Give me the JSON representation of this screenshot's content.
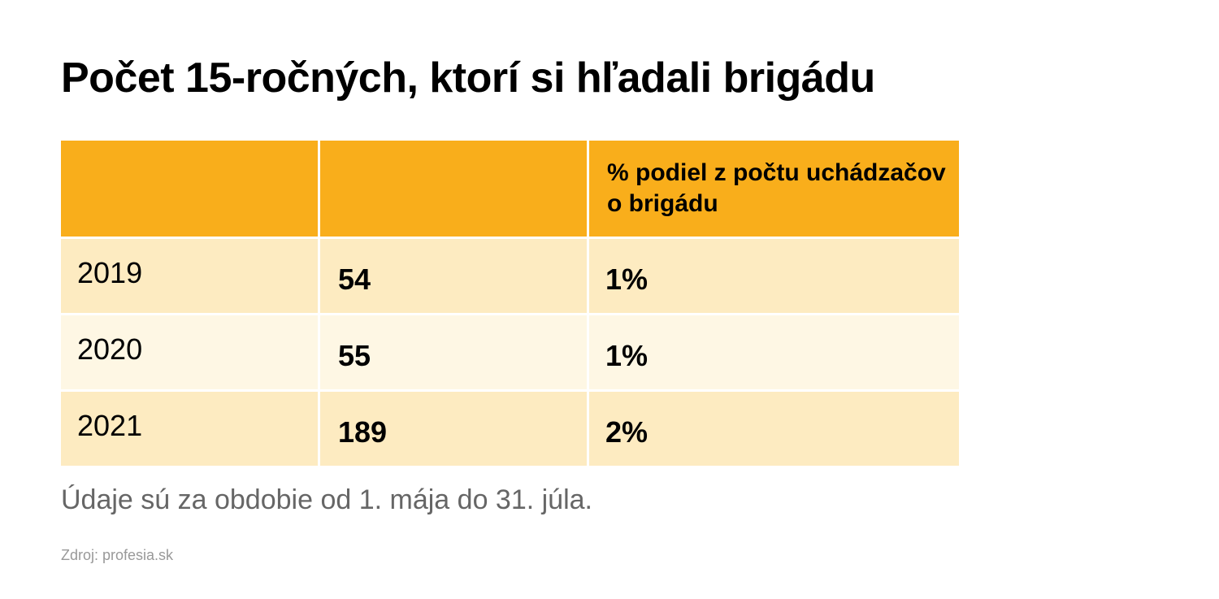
{
  "title": "Počet 15-ročných, ktorí si hľadali brigádu",
  "chart_data": {
    "type": "table",
    "title": "Počet 15-ročných, ktorí si hľadali brigádu",
    "columns": [
      "",
      "",
      "% podiel z počtu uchádzačov o brigádu"
    ],
    "rows": [
      {
        "year": "2019",
        "count": "54",
        "share": "1%"
      },
      {
        "year": "2020",
        "count": "55",
        "share": "1%"
      },
      {
        "year": "2021",
        "count": "189",
        "share": "2%"
      }
    ]
  },
  "note": "Údaje sú za obdobie od 1. mája do 31. júla.",
  "source": "Zdroj: profesia.sk",
  "colors": {
    "header": "#f9ae1b",
    "row_odd": "#fdebc1",
    "row_even": "#fef7e4"
  }
}
